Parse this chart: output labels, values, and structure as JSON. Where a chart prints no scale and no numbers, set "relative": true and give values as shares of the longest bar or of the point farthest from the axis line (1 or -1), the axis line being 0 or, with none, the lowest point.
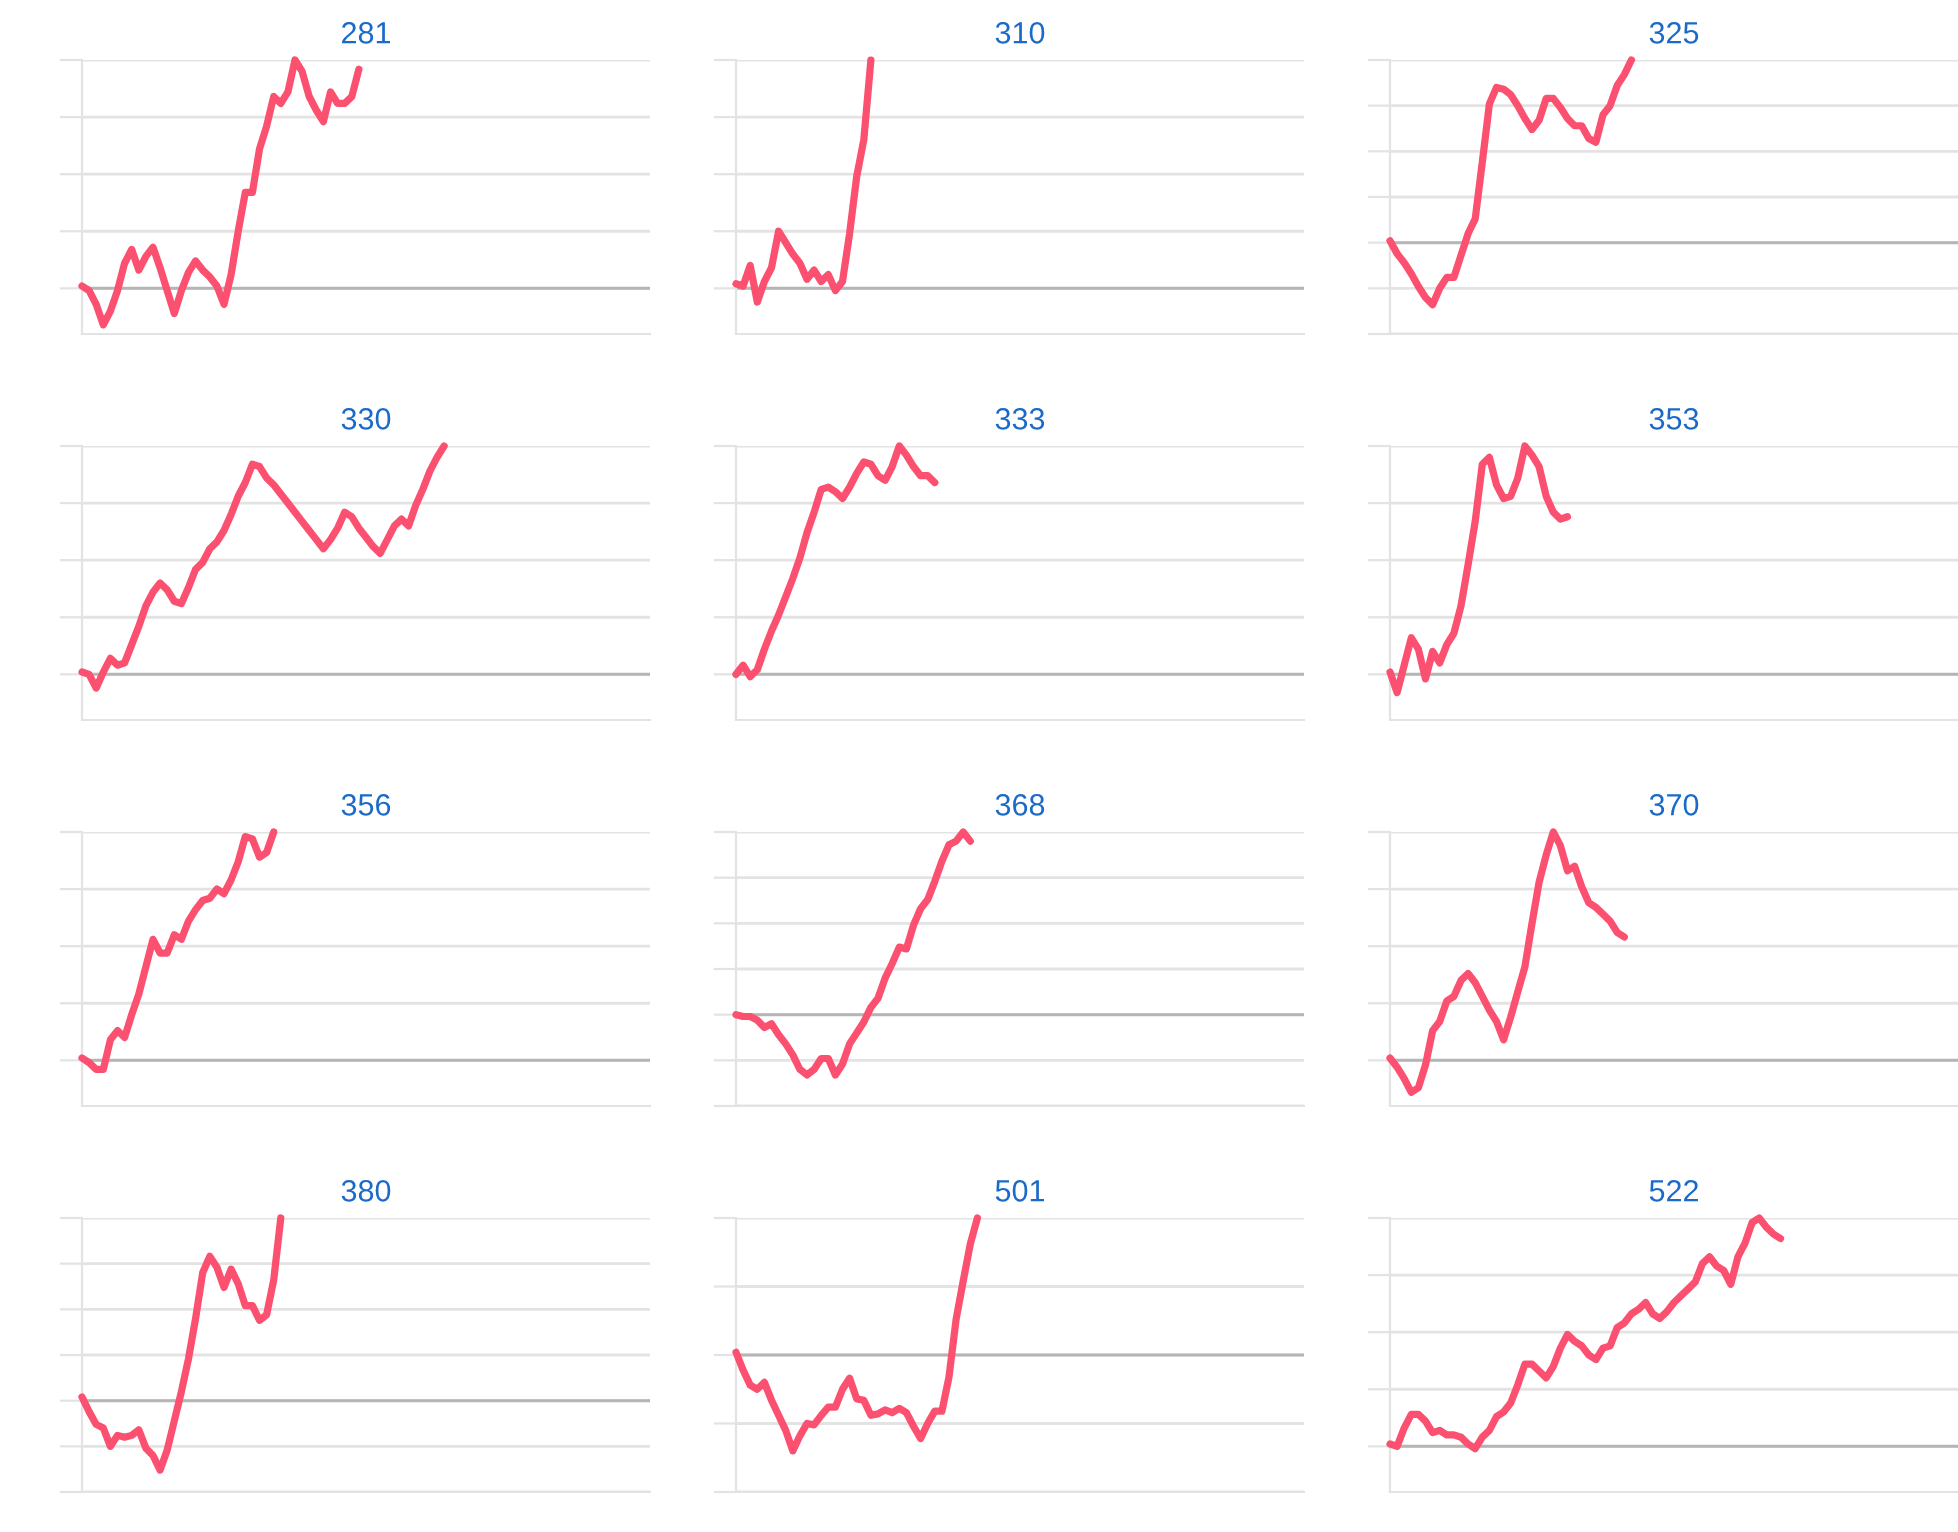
{
  "chart_data": [
    {
      "type": "line",
      "title": "281",
      "relative": true,
      "grid": "y",
      "categories": [
        null,
        null,
        null,
        null,
        null,
        null,
        null,
        null,
        null,
        null,
        null,
        null,
        null,
        null,
        null,
        null,
        null,
        null,
        null,
        null,
        null,
        null,
        null,
        null,
        null,
        null,
        null,
        null,
        null,
        null,
        null,
        null,
        null,
        null,
        null,
        null,
        null,
        null,
        null,
        null,
        null,
        null,
        null,
        null,
        null,
        null,
        null,
        null,
        null,
        null,
        null,
        null,
        null,
        null,
        null,
        null,
        null,
        null,
        null,
        null,
        null,
        null,
        null,
        null,
        null,
        null,
        null,
        null,
        null,
        null,
        null,
        null,
        null,
        null,
        null,
        null,
        null,
        null,
        null,
        null,
        null
      ],
      "series": [
        {
          "color": "#fb5070",
          "values": [
            0.01,
            -0.01,
            -0.07,
            -0.16,
            -0.1,
            -0.01,
            0.11,
            0.17,
            0.08,
            0.14,
            0.18,
            0.09,
            -0.01,
            -0.11,
            -0.01,
            0.07,
            0.12,
            0.08,
            0.05,
            0.01,
            -0.07,
            0.06,
            0.25,
            0.42,
            0.42,
            0.61,
            0.71,
            0.84,
            0.81,
            0.86,
            1,
            0.95,
            0.84,
            0.78,
            0.73,
            0.86,
            0.81,
            0.81,
            0.84,
            0.96,
            null,
            null,
            null,
            null,
            null,
            null,
            null,
            null,
            null,
            null,
            null,
            null,
            null,
            null,
            null,
            null,
            null,
            null,
            null,
            null,
            null,
            null,
            null,
            null,
            null,
            null,
            null,
            null,
            null,
            null,
            null,
            null,
            null,
            null,
            null,
            null,
            null,
            null,
            null,
            null,
            null
          ]
        }
      ]
    },
    {
      "type": "line",
      "title": "310",
      "relative": true,
      "grid": "y",
      "categories": [
        null,
        null,
        null,
        null,
        null,
        null,
        null,
        null,
        null,
        null,
        null,
        null,
        null,
        null,
        null,
        null,
        null,
        null,
        null,
        null,
        null,
        null,
        null,
        null,
        null,
        null,
        null,
        null,
        null,
        null,
        null,
        null,
        null,
        null,
        null,
        null,
        null,
        null,
        null,
        null,
        null,
        null,
        null,
        null,
        null,
        null,
        null,
        null,
        null,
        null,
        null,
        null,
        null,
        null,
        null,
        null,
        null,
        null,
        null,
        null,
        null,
        null,
        null,
        null,
        null,
        null,
        null,
        null,
        null,
        null,
        null,
        null,
        null,
        null,
        null,
        null,
        null,
        null,
        null,
        null,
        null
      ],
      "series": [
        {
          "color": "#fb5070",
          "values": [
            0.02,
            0.01,
            0.1,
            -0.06,
            0.03,
            0.09,
            0.25,
            0.2,
            0.15,
            0.11,
            0.04,
            0.08,
            0.03,
            0.06,
            -0.01,
            0.03,
            0.24,
            0.49,
            0.65,
            1,
            null,
            null,
            null,
            null,
            null,
            null,
            null,
            null,
            null,
            null,
            null,
            null,
            null,
            null,
            null,
            null,
            null,
            null,
            null,
            null,
            null,
            null,
            null,
            null,
            null,
            null,
            null,
            null,
            null,
            null,
            null,
            null,
            null,
            null,
            null,
            null,
            null,
            null,
            null,
            null,
            null,
            null,
            null,
            null,
            null,
            null,
            null,
            null,
            null,
            null,
            null,
            null,
            null,
            null,
            null,
            null,
            null,
            null,
            null,
            null,
            null
          ]
        }
      ]
    },
    {
      "type": "line",
      "title": "325",
      "relative": true,
      "grid": "y",
      "categories": [
        null,
        null,
        null,
        null,
        null,
        null,
        null,
        null,
        null,
        null,
        null,
        null,
        null,
        null,
        null,
        null,
        null,
        null,
        null,
        null,
        null,
        null,
        null,
        null,
        null,
        null,
        null,
        null,
        null,
        null,
        null,
        null,
        null,
        null,
        null,
        null,
        null,
        null,
        null,
        null,
        null,
        null,
        null,
        null,
        null,
        null,
        null,
        null,
        null,
        null,
        null,
        null,
        null,
        null,
        null,
        null,
        null,
        null,
        null,
        null,
        null,
        null,
        null,
        null,
        null,
        null,
        null,
        null,
        null,
        null,
        null,
        null,
        null,
        null,
        null,
        null,
        null,
        null,
        null,
        null,
        null
      ],
      "series": [
        {
          "color": "#fb5070",
          "values": [
            0.01,
            -0.06,
            -0.11,
            -0.17,
            -0.24,
            -0.3,
            -0.34,
            -0.25,
            -0.19,
            -0.19,
            -0.07,
            0.05,
            0.13,
            0.44,
            0.76,
            0.85,
            0.84,
            0.81,
            0.75,
            0.68,
            0.62,
            0.67,
            0.79,
            0.79,
            0.74,
            0.68,
            0.64,
            0.64,
            0.57,
            0.55,
            0.7,
            0.75,
            0.86,
            0.92,
            1,
            null,
            null,
            null,
            null,
            null,
            null,
            null,
            null,
            null,
            null,
            null,
            null,
            null,
            null,
            null,
            null,
            null,
            null,
            null,
            null,
            null,
            null,
            null,
            null,
            null,
            null,
            null,
            null,
            null,
            null,
            null,
            null,
            null,
            null,
            null,
            null,
            null,
            null,
            null,
            null,
            null,
            null,
            null,
            null,
            null,
            null
          ]
        }
      ]
    },
    {
      "type": "line",
      "title": "330",
      "relative": true,
      "grid": "y",
      "categories": [
        null,
        null,
        null,
        null,
        null,
        null,
        null,
        null,
        null,
        null,
        null,
        null,
        null,
        null,
        null,
        null,
        null,
        null,
        null,
        null,
        null,
        null,
        null,
        null,
        null,
        null,
        null,
        null,
        null,
        null,
        null,
        null,
        null,
        null,
        null,
        null,
        null,
        null,
        null,
        null,
        null,
        null,
        null,
        null,
        null,
        null,
        null,
        null,
        null,
        null,
        null,
        null,
        null,
        null,
        null,
        null,
        null,
        null,
        null,
        null,
        null,
        null,
        null,
        null,
        null,
        null,
        null,
        null,
        null,
        null,
        null,
        null,
        null,
        null,
        null,
        null,
        null,
        null,
        null,
        null,
        null
      ],
      "series": [
        {
          "color": "#fb5070",
          "values": [
            0.01,
            0,
            -0.06,
            0.01,
            0.07,
            0.04,
            0.05,
            0.13,
            0.21,
            0.3,
            0.36,
            0.4,
            0.37,
            0.32,
            0.31,
            0.38,
            0.46,
            0.49,
            0.55,
            0.58,
            0.63,
            0.7,
            0.78,
            0.84,
            0.92,
            0.91,
            0.86,
            0.83,
            0.79,
            0.75,
            0.71,
            0.67,
            0.63,
            0.59,
            0.55,
            0.59,
            0.64,
            0.71,
            0.69,
            0.64,
            0.6,
            0.56,
            0.53,
            0.59,
            0.65,
            0.68,
            0.65,
            0.74,
            0.81,
            0.89,
            0.95,
            1,
            null,
            null,
            null,
            null,
            null,
            null,
            null,
            null,
            null,
            null,
            null,
            null,
            null,
            null,
            null,
            null,
            null,
            null,
            null,
            null,
            null,
            null,
            null,
            null,
            null,
            null,
            null,
            null,
            null
          ]
        }
      ]
    },
    {
      "type": "line",
      "title": "333",
      "relative": true,
      "grid": "y",
      "categories": [
        null,
        null,
        null,
        null,
        null,
        null,
        null,
        null,
        null,
        null,
        null,
        null,
        null,
        null,
        null,
        null,
        null,
        null,
        null,
        null,
        null,
        null,
        null,
        null,
        null,
        null,
        null,
        null,
        null,
        null,
        null,
        null,
        null,
        null,
        null,
        null,
        null,
        null,
        null,
        null,
        null,
        null,
        null,
        null,
        null,
        null,
        null,
        null,
        null,
        null,
        null,
        null,
        null,
        null,
        null,
        null,
        null,
        null,
        null,
        null,
        null,
        null,
        null,
        null,
        null,
        null,
        null,
        null,
        null,
        null,
        null,
        null,
        null,
        null,
        null,
        null,
        null,
        null,
        null,
        null,
        null
      ],
      "series": [
        {
          "color": "#fb5070",
          "values": [
            0,
            0.04,
            -0.01,
            0.02,
            0.11,
            0.19,
            0.26,
            0.34,
            0.42,
            0.51,
            0.62,
            0.71,
            0.81,
            0.82,
            0.8,
            0.77,
            0.82,
            0.88,
            0.93,
            0.92,
            0.87,
            0.85,
            0.91,
            1,
            0.96,
            0.91,
            0.87,
            0.87,
            0.84,
            null,
            null,
            null,
            null,
            null,
            null,
            null,
            null,
            null,
            null,
            null,
            null,
            null,
            null,
            null,
            null,
            null,
            null,
            null,
            null,
            null,
            null,
            null,
            null,
            null,
            null,
            null,
            null,
            null,
            null,
            null,
            null,
            null,
            null,
            null,
            null,
            null,
            null,
            null,
            null,
            null,
            null,
            null,
            null,
            null,
            null,
            null,
            null,
            null,
            null,
            null,
            null
          ]
        }
      ]
    },
    {
      "type": "line",
      "title": "353",
      "relative": true,
      "grid": "y",
      "categories": [
        null,
        null,
        null,
        null,
        null,
        null,
        null,
        null,
        null,
        null,
        null,
        null,
        null,
        null,
        null,
        null,
        null,
        null,
        null,
        null,
        null,
        null,
        null,
        null,
        null,
        null,
        null,
        null,
        null,
        null,
        null,
        null,
        null,
        null,
        null,
        null,
        null,
        null,
        null,
        null,
        null,
        null,
        null,
        null,
        null,
        null,
        null,
        null,
        null,
        null,
        null,
        null,
        null,
        null,
        null,
        null,
        null,
        null,
        null,
        null,
        null,
        null,
        null,
        null,
        null,
        null,
        null,
        null,
        null,
        null,
        null,
        null,
        null,
        null,
        null,
        null,
        null,
        null,
        null,
        null,
        null
      ],
      "series": [
        {
          "color": "#fb5070",
          "values": [
            0.01,
            -0.08,
            0.04,
            0.16,
            0.11,
            -0.02,
            0.1,
            0.05,
            0.13,
            0.18,
            0.3,
            0.48,
            0.67,
            0.92,
            0.95,
            0.83,
            0.77,
            0.78,
            0.86,
            1,
            0.96,
            0.91,
            0.78,
            0.71,
            0.68,
            0.69,
            null,
            null,
            null,
            null,
            null,
            null,
            null,
            null,
            null,
            null,
            null,
            null,
            null,
            null,
            null,
            null,
            null,
            null,
            null,
            null,
            null,
            null,
            null,
            null,
            null,
            null,
            null,
            null,
            null,
            null,
            null,
            null,
            null,
            null,
            null,
            null,
            null,
            null,
            null,
            null,
            null,
            null,
            null,
            null,
            null,
            null,
            null,
            null,
            null,
            null,
            null,
            null,
            null,
            null,
            null
          ]
        }
      ]
    },
    {
      "type": "line",
      "title": "356",
      "relative": true,
      "grid": "y",
      "categories": [
        null,
        null,
        null,
        null,
        null,
        null,
        null,
        null,
        null,
        null,
        null,
        null,
        null,
        null,
        null,
        null,
        null,
        null,
        null,
        null,
        null,
        null,
        null,
        null,
        null,
        null,
        null,
        null,
        null,
        null,
        null,
        null,
        null,
        null,
        null,
        null,
        null,
        null,
        null,
        null,
        null,
        null,
        null,
        null,
        null,
        null,
        null,
        null,
        null,
        null,
        null,
        null,
        null,
        null,
        null,
        null,
        null,
        null,
        null,
        null,
        null,
        null,
        null,
        null,
        null,
        null,
        null,
        null,
        null,
        null,
        null,
        null,
        null,
        null,
        null,
        null,
        null,
        null,
        null,
        null,
        null
      ],
      "series": [
        {
          "color": "#fb5070",
          "values": [
            0.01,
            -0.01,
            -0.04,
            -0.04,
            0.09,
            0.13,
            0.1,
            0.2,
            0.29,
            0.41,
            0.53,
            0.47,
            0.47,
            0.55,
            0.53,
            0.61,
            0.66,
            0.7,
            0.71,
            0.75,
            0.73,
            0.79,
            0.87,
            0.98,
            0.97,
            0.89,
            0.91,
            1,
            null,
            null,
            null,
            null,
            null,
            null,
            null,
            null,
            null,
            null,
            null,
            null,
            null,
            null,
            null,
            null,
            null,
            null,
            null,
            null,
            null,
            null,
            null,
            null,
            null,
            null,
            null,
            null,
            null,
            null,
            null,
            null,
            null,
            null,
            null,
            null,
            null,
            null,
            null,
            null,
            null,
            null,
            null,
            null,
            null,
            null,
            null,
            null,
            null,
            null,
            null,
            null,
            null
          ]
        }
      ]
    },
    {
      "type": "line",
      "title": "368",
      "relative": true,
      "grid": "y",
      "categories": [
        null,
        null,
        null,
        null,
        null,
        null,
        null,
        null,
        null,
        null,
        null,
        null,
        null,
        null,
        null,
        null,
        null,
        null,
        null,
        null,
        null,
        null,
        null,
        null,
        null,
        null,
        null,
        null,
        null,
        null,
        null,
        null,
        null,
        null,
        null,
        null,
        null,
        null,
        null,
        null,
        null,
        null,
        null,
        null,
        null,
        null,
        null,
        null,
        null,
        null,
        null,
        null,
        null,
        null,
        null,
        null,
        null,
        null,
        null,
        null,
        null,
        null,
        null,
        null,
        null,
        null,
        null,
        null,
        null,
        null,
        null,
        null,
        null,
        null,
        null,
        null,
        null,
        null,
        null,
        null,
        null
      ],
      "series": [
        {
          "color": "#fb5070",
          "values": [
            0,
            -0.01,
            -0.01,
            -0.03,
            -0.07,
            -0.05,
            -0.11,
            -0.16,
            -0.22,
            -0.3,
            -0.33,
            -0.3,
            -0.24,
            -0.24,
            -0.33,
            -0.27,
            -0.16,
            -0.1,
            -0.04,
            0.04,
            0.09,
            0.2,
            0.28,
            0.37,
            0.36,
            0.49,
            0.58,
            0.63,
            0.73,
            0.84,
            0.93,
            0.95,
            1,
            0.95,
            null,
            null,
            null,
            null,
            null,
            null,
            null,
            null,
            null,
            null,
            null,
            null,
            null,
            null,
            null,
            null,
            null,
            null,
            null,
            null,
            null,
            null,
            null,
            null,
            null,
            null,
            null,
            null,
            null,
            null,
            null,
            null,
            null,
            null,
            null,
            null,
            null,
            null,
            null,
            null,
            null,
            null,
            null,
            null,
            null,
            null,
            null
          ]
        }
      ]
    },
    {
      "type": "line",
      "title": "370",
      "relative": true,
      "grid": "y",
      "categories": [
        null,
        null,
        null,
        null,
        null,
        null,
        null,
        null,
        null,
        null,
        null,
        null,
        null,
        null,
        null,
        null,
        null,
        null,
        null,
        null,
        null,
        null,
        null,
        null,
        null,
        null,
        null,
        null,
        null,
        null,
        null,
        null,
        null,
        null,
        null,
        null,
        null,
        null,
        null,
        null,
        null,
        null,
        null,
        null,
        null,
        null,
        null,
        null,
        null,
        null,
        null,
        null,
        null,
        null,
        null,
        null,
        null,
        null,
        null,
        null,
        null,
        null,
        null,
        null,
        null,
        null,
        null,
        null,
        null,
        null,
        null,
        null,
        null,
        null,
        null,
        null,
        null,
        null,
        null,
        null,
        null
      ],
      "series": [
        {
          "color": "#fb5070",
          "values": [
            0.01,
            -0.03,
            -0.08,
            -0.14,
            -0.12,
            -0.02,
            0.13,
            0.17,
            0.26,
            0.28,
            0.35,
            0.38,
            0.34,
            0.28,
            0.22,
            0.17,
            0.09,
            0.19,
            0.3,
            0.41,
            0.6,
            0.78,
            0.9,
            1,
            0.94,
            0.83,
            0.85,
            0.76,
            0.69,
            0.67,
            0.64,
            0.61,
            0.56,
            0.54,
            null,
            null,
            null,
            null,
            null,
            null,
            null,
            null,
            null,
            null,
            null,
            null,
            null,
            null,
            null,
            null,
            null,
            null,
            null,
            null,
            null,
            null,
            null,
            null,
            null,
            null,
            null,
            null,
            null,
            null,
            null,
            null,
            null,
            null,
            null,
            null,
            null,
            null,
            null,
            null,
            null,
            null,
            null,
            null,
            null,
            null,
            null
          ]
        }
      ]
    },
    {
      "type": "line",
      "title": "380",
      "relative": true,
      "grid": "y",
      "categories": [
        null,
        null,
        null,
        null,
        null,
        null,
        null,
        null,
        null,
        null,
        null,
        null,
        null,
        null,
        null,
        null,
        null,
        null,
        null,
        null,
        null,
        null,
        null,
        null,
        null,
        null,
        null,
        null,
        null,
        null,
        null,
        null,
        null,
        null,
        null,
        null,
        null,
        null,
        null,
        null,
        null,
        null,
        null,
        null,
        null,
        null,
        null,
        null,
        null,
        null,
        null,
        null,
        null,
        null,
        null,
        null,
        null,
        null,
        null,
        null,
        null,
        null,
        null,
        null,
        null,
        null,
        null,
        null,
        null,
        null,
        null,
        null,
        null,
        null,
        null,
        null,
        null,
        null,
        null,
        null,
        null
      ],
      "series": [
        {
          "color": "#fb5070",
          "values": [
            0.02,
            -0.06,
            -0.13,
            -0.15,
            -0.25,
            -0.19,
            -0.2,
            -0.19,
            -0.16,
            -0.26,
            -0.3,
            -0.38,
            -0.27,
            -0.11,
            0.05,
            0.23,
            0.45,
            0.7,
            0.79,
            0.73,
            0.62,
            0.72,
            0.64,
            0.52,
            0.52,
            0.44,
            0.47,
            0.66,
            1,
            null,
            null,
            null,
            null,
            null,
            null,
            null,
            null,
            null,
            null,
            null,
            null,
            null,
            null,
            null,
            null,
            null,
            null,
            null,
            null,
            null,
            null,
            null,
            null,
            null,
            null,
            null,
            null,
            null,
            null,
            null,
            null,
            null,
            null,
            null,
            null,
            null,
            null,
            null,
            null,
            null,
            null,
            null,
            null,
            null,
            null,
            null,
            null,
            null,
            null,
            null,
            null
          ]
        }
      ]
    },
    {
      "type": "line",
      "title": "501",
      "relative": true,
      "grid": "y",
      "categories": [
        null,
        null,
        null,
        null,
        null,
        null,
        null,
        null,
        null,
        null,
        null,
        null,
        null,
        null,
        null,
        null,
        null,
        null,
        null,
        null,
        null,
        null,
        null,
        null,
        null,
        null,
        null,
        null,
        null,
        null,
        null,
        null,
        null,
        null,
        null,
        null,
        null,
        null,
        null,
        null,
        null,
        null,
        null,
        null,
        null,
        null,
        null,
        null,
        null,
        null,
        null,
        null,
        null,
        null,
        null,
        null,
        null,
        null,
        null,
        null,
        null,
        null,
        null,
        null,
        null,
        null,
        null,
        null,
        null,
        null,
        null,
        null,
        null,
        null,
        null,
        null,
        null,
        null,
        null,
        null,
        null
      ],
      "series": [
        {
          "color": "#fb5070",
          "values": [
            0.02,
            -0.11,
            -0.22,
            -0.25,
            -0.2,
            -0.33,
            -0.44,
            -0.55,
            -0.7,
            -0.59,
            -0.5,
            -0.51,
            -0.44,
            -0.38,
            -0.38,
            -0.25,
            -0.17,
            -0.32,
            -0.33,
            -0.44,
            -0.43,
            -0.4,
            -0.42,
            -0.39,
            -0.42,
            -0.52,
            -0.61,
            -0.5,
            -0.41,
            -0.41,
            -0.16,
            0.26,
            0.54,
            0.81,
            1,
            null,
            null,
            null,
            null,
            null,
            null,
            null,
            null,
            null,
            null,
            null,
            null,
            null,
            null,
            null,
            null,
            null,
            null,
            null,
            null,
            null,
            null,
            null,
            null,
            null,
            null,
            null,
            null,
            null,
            null,
            null,
            null,
            null,
            null,
            null,
            null,
            null,
            null,
            null,
            null,
            null,
            null,
            null,
            null,
            null,
            null
          ]
        }
      ]
    },
    {
      "type": "line",
      "title": "522",
      "relative": true,
      "grid": "y",
      "categories": [
        null,
        null,
        null,
        null,
        null,
        null,
        null,
        null,
        null,
        null,
        null,
        null,
        null,
        null,
        null,
        null,
        null,
        null,
        null,
        null,
        null,
        null,
        null,
        null,
        null,
        null,
        null,
        null,
        null,
        null,
        null,
        null,
        null,
        null,
        null,
        null,
        null,
        null,
        null,
        null,
        null,
        null,
        null,
        null,
        null,
        null,
        null,
        null,
        null,
        null,
        null,
        null,
        null,
        null,
        null,
        null,
        null,
        null,
        null,
        null,
        null,
        null,
        null,
        null,
        null,
        null,
        null,
        null,
        null,
        null,
        null,
        null,
        null,
        null,
        null,
        null,
        null,
        null,
        null,
        null,
        null
      ],
      "series": [
        {
          "color": "#fb5070",
          "values": [
            0.01,
            0,
            0.08,
            0.14,
            0.14,
            0.11,
            0.06,
            0.07,
            0.05,
            0.05,
            0.04,
            0.01,
            -0.01,
            0.04,
            0.07,
            0.13,
            0.15,
            0.19,
            0.27,
            0.36,
            0.36,
            0.33,
            0.3,
            0.35,
            0.43,
            0.49,
            0.46,
            0.44,
            0.4,
            0.38,
            0.43,
            0.44,
            0.52,
            0.54,
            0.58,
            0.6,
            0.63,
            0.58,
            0.56,
            0.59,
            0.63,
            0.66,
            0.69,
            0.72,
            0.8,
            0.83,
            0.79,
            0.77,
            0.71,
            0.83,
            0.89,
            0.98,
            1,
            0.96,
            0.93,
            0.91,
            null,
            null,
            null,
            null,
            null,
            null,
            null,
            null,
            null,
            null,
            null,
            null,
            null,
            null,
            null,
            null,
            null,
            null,
            null,
            null,
            null,
            null,
            null,
            null,
            null
          ]
        }
      ]
    }
  ]
}
